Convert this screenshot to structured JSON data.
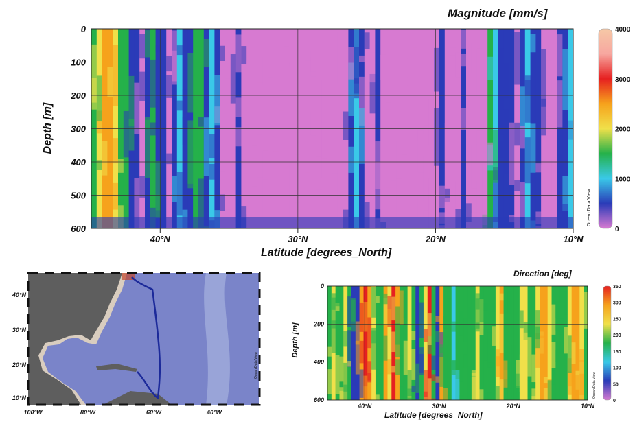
{
  "chart_data": [
    {
      "type": "heatmap",
      "id": "magnitude",
      "title": "Magnitude [mm/s]",
      "xlabel": "Latitude [degrees_North]",
      "ylabel": "Depth [m]",
      "xlim": [
        45,
        10
      ],
      "ylim": [
        600,
        0
      ],
      "x_ticks": [
        {
          "value": 40,
          "label": "40°N"
        },
        {
          "value": 30,
          "label": "30°N"
        },
        {
          "value": 20,
          "label": "20°N"
        },
        {
          "value": 10,
          "label": "10°N"
        }
      ],
      "y_ticks": [
        {
          "value": 0,
          "label": "0"
        },
        {
          "value": 100,
          "label": "100"
        },
        {
          "value": 200,
          "label": "200"
        },
        {
          "value": 300,
          "label": "300"
        },
        {
          "value": 400,
          "label": "400"
        },
        {
          "value": 500,
          "label": "500"
        },
        {
          "value": 600,
          "label": "600"
        }
      ],
      "colorbar": {
        "min": 0,
        "max": 4000,
        "ticks": [
          "0",
          "1000",
          "2000",
          "3000",
          "4000"
        ]
      },
      "watermark": "Ocean Data View",
      "grid": true
    },
    {
      "type": "heatmap",
      "id": "direction",
      "title": "Direction [deg]",
      "xlabel": "Latitude [degrees_North]",
      "ylabel": "Depth [m]",
      "xlim": [
        45,
        10
      ],
      "ylim": [
        600,
        0
      ],
      "x_ticks": [
        {
          "value": 40,
          "label": "40°N"
        },
        {
          "value": 30,
          "label": "30°N"
        },
        {
          "value": 20,
          "label": "20°N"
        },
        {
          "value": 10,
          "label": "10°N"
        }
      ],
      "y_ticks": [
        {
          "value": 0,
          "label": "0"
        },
        {
          "value": 200,
          "label": "200"
        },
        {
          "value": 400,
          "label": "400"
        },
        {
          "value": 600,
          "label": "600"
        }
      ],
      "colorbar": {
        "min": 0,
        "max": 350,
        "ticks": [
          "0",
          "50",
          "100",
          "150",
          "200",
          "250",
          "300",
          "350"
        ]
      },
      "watermark": "Ocean Data View",
      "grid": true
    }
  ],
  "map": {
    "lon_ticks": [
      "100°W",
      "80°W",
      "60°W",
      "40°W"
    ],
    "lat_ticks": [
      "40°N",
      "30°N",
      "20°N",
      "10°N"
    ],
    "watermark": "Ocean Data View",
    "colors": {
      "land": "#5e5e5e",
      "shelf": "#d9cdbf",
      "ocean": "#7a84c9",
      "ridge": "#a7b2de",
      "track": "#1c2a9a"
    }
  },
  "colors": {
    "magnitude_scale": [
      "#d77ad1",
      "#2a3bb8",
      "#3ac9e8",
      "#25b14a",
      "#f0e04a",
      "#f6a21c",
      "#e62020",
      "#f7a7a0",
      "#f6c8a6"
    ],
    "direction_scale": [
      "#d77ad1",
      "#2a3bb8",
      "#3ac9e8",
      "#25b14a",
      "#f0e04a",
      "#f6a21c",
      "#e62020"
    ]
  }
}
